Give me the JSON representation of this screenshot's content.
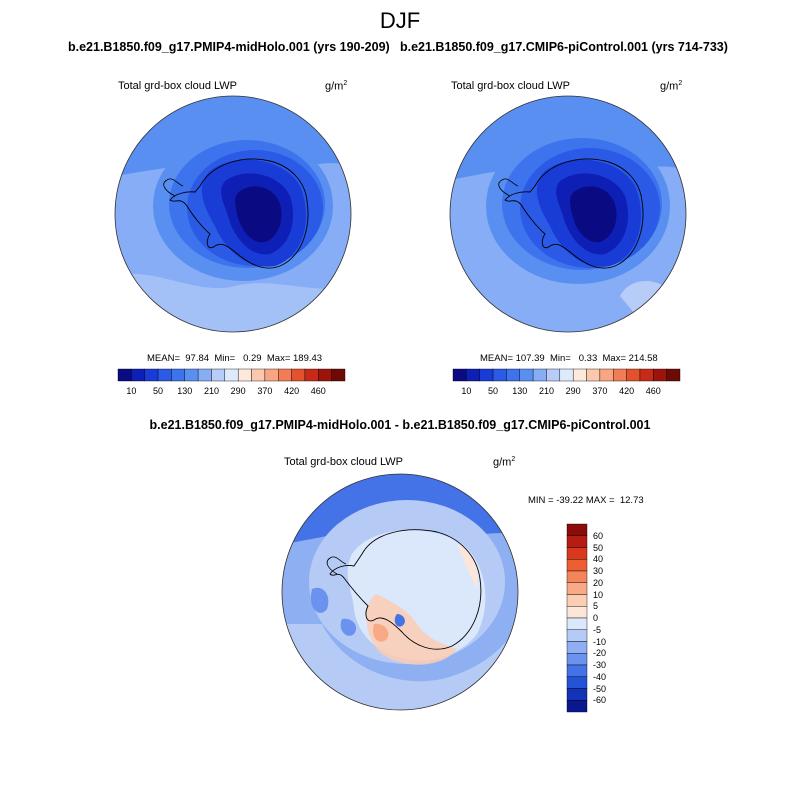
{
  "season": "DJF",
  "panels": [
    {
      "case": "b.e21.B1850.f09_g17.PMIP4-midHolo.001 (yrs 190-209)",
      "title": "Total grd-box cloud LWP",
      "units": "g/m",
      "units_sup": "2",
      "stats": "MEAN=  97.84  Min=   0.29  Max= 189.43"
    },
    {
      "case": "b.e21.B1850.f09_g17.CMIP6-piControl.001 (yrs 714-733)",
      "title": "Total grd-box cloud LWP",
      "units": "g/m",
      "units_sup": "2",
      "stats": "MEAN= 107.39  Min=   0.33  Max= 214.58"
    }
  ],
  "colorbar": {
    "labels": [
      "10",
      "50",
      "130",
      "210",
      "290",
      "370",
      "420",
      "460"
    ],
    "colors": [
      "#0a0a82",
      "#0d1fb4",
      "#1a3cd6",
      "#2a5ae6",
      "#3d74ee",
      "#5a8ff2",
      "#86adf5",
      "#b7cdf8",
      "#ddeafc",
      "#fde9dc",
      "#fbc8ae",
      "#f7a582",
      "#f27c55",
      "#e4512d",
      "#c72b17",
      "#9c140c",
      "#6e0a06"
    ]
  },
  "difference": {
    "title": "b.e21.B1850.f09_g17.PMIP4-midHolo.001 - b.e21.B1850.f09_g17.CMIP6-piControl.001",
    "panel_title": "Total grd-box cloud LWP",
    "units": "g/m",
    "units_sup": "2",
    "stats": "MIN = -39.22 MAX =  12.73",
    "colorbar_labels": [
      "60",
      "50",
      "40",
      "30",
      "20",
      "10",
      "5",
      "0",
      "-5",
      "-10",
      "-20",
      "-30",
      "-40",
      "-50",
      "-60"
    ],
    "colorbar_colors": [
      "#8b0c0a",
      "#b51d12",
      "#d8391c",
      "#ee5e33",
      "#f4845a",
      "#f8aa86",
      "#fbcdb3",
      "#fce6da",
      "#dbe7fb",
      "#b5cbf6",
      "#8eb0f2",
      "#6a92ee",
      "#4473e7",
      "#2453d8",
      "#1232b8",
      "#0a188f"
    ]
  }
}
